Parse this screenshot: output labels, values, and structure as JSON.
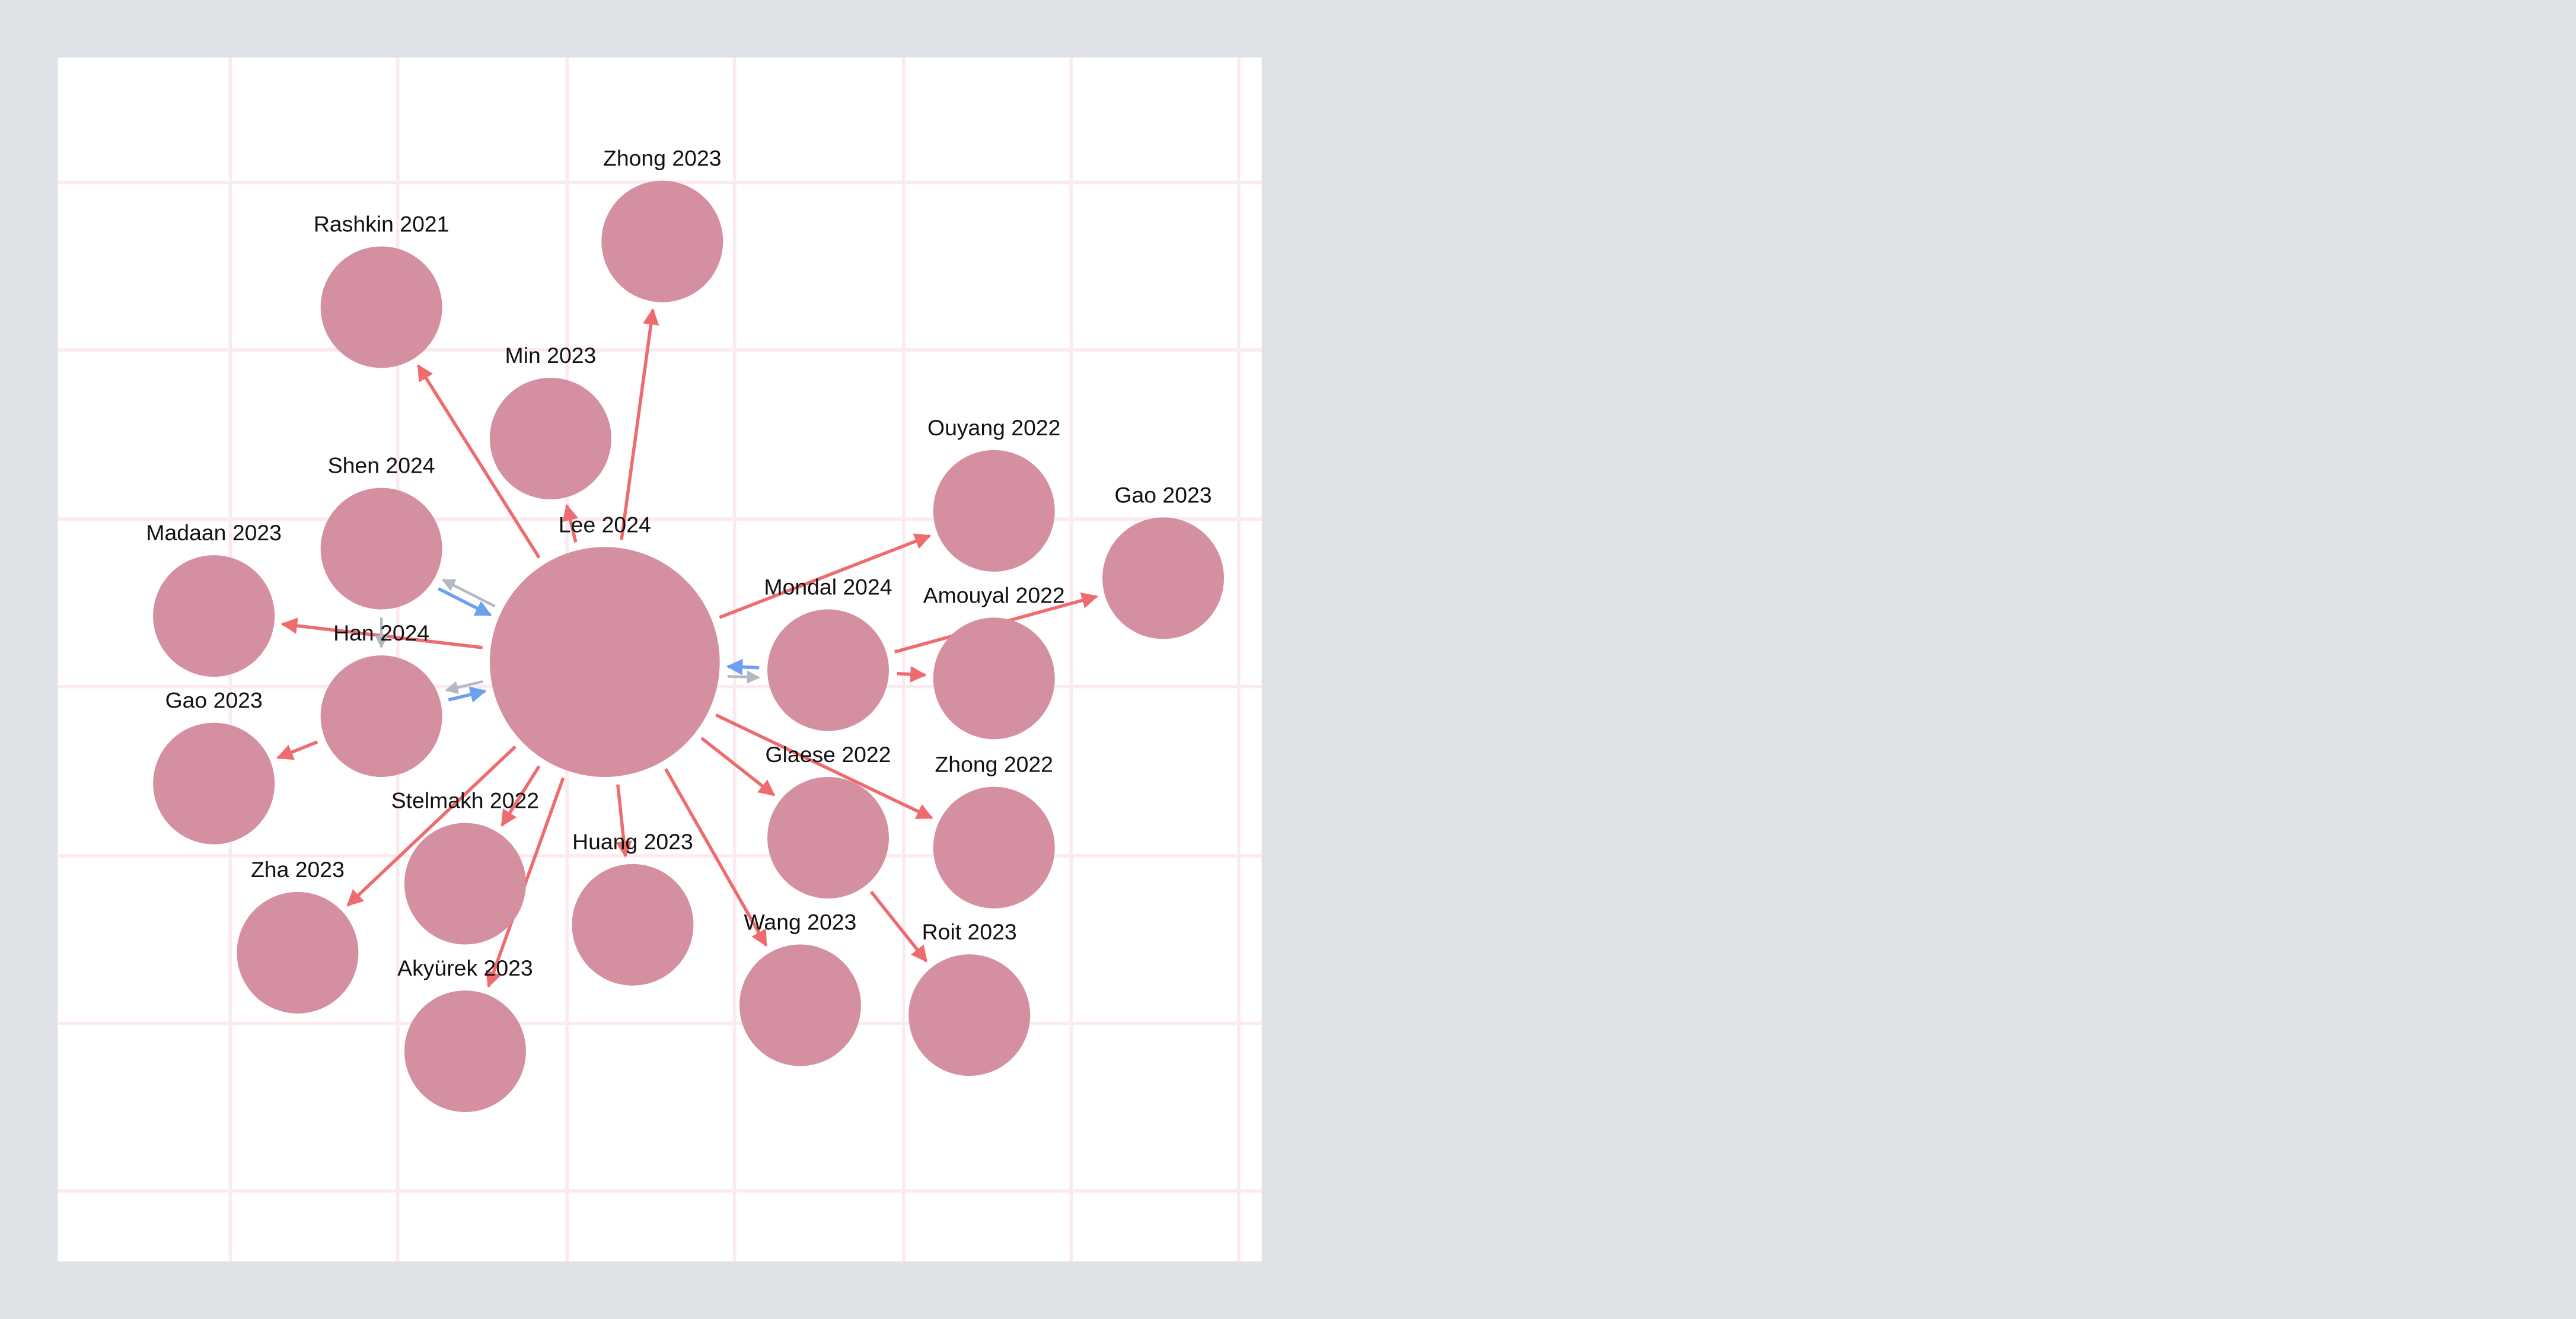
{
  "graph": {
    "colors": {
      "background": "#dfe3e8",
      "panel": "#ffffff",
      "grid": "#fbeaf0",
      "node": "#d48fa0",
      "edge_red": "#ee6b6e",
      "edge_blue": "#6ea0f0",
      "edge_gray": "#b4b8c2"
    },
    "nodes": [
      {
        "id": "lee2024",
        "label": "Lee 2024"
      },
      {
        "id": "zhong2023",
        "label": "Zhong 2023"
      },
      {
        "id": "rashkin2021",
        "label": "Rashkin 2021"
      },
      {
        "id": "min2023",
        "label": "Min 2023"
      },
      {
        "id": "shen2024",
        "label": "Shen 2024"
      },
      {
        "id": "madaan2023",
        "label": "Madaan 2023"
      },
      {
        "id": "han2024",
        "label": "Han 2024"
      },
      {
        "id": "gao2023a",
        "label": "Gao 2023"
      },
      {
        "id": "stelmakh2022",
        "label": "Stelmakh 2022"
      },
      {
        "id": "zha2023",
        "label": "Zha 2023"
      },
      {
        "id": "akyurek2023",
        "label": "Akyürek 2023"
      },
      {
        "id": "huang2023",
        "label": "Huang 2023"
      },
      {
        "id": "wang2023",
        "label": "Wang 2023"
      },
      {
        "id": "roit2023",
        "label": "Roit 2023"
      },
      {
        "id": "glaese2022",
        "label": "Glaese 2022"
      },
      {
        "id": "zhong2022",
        "label": "Zhong 2022"
      },
      {
        "id": "mondal2024",
        "label": "Mondal 2024"
      },
      {
        "id": "amouyal2022",
        "label": "Amouyal 2022"
      },
      {
        "id": "ouyang2022",
        "label": "Ouyang 2022"
      },
      {
        "id": "gao2023b",
        "label": "Gao 2023"
      }
    ],
    "edges": [
      {
        "from": "lee2024",
        "to": "zhong2023",
        "color": "edge_red"
      },
      {
        "from": "lee2024",
        "to": "rashkin2021",
        "color": "edge_red"
      },
      {
        "from": "lee2024",
        "to": "min2023",
        "color": "edge_red"
      },
      {
        "from": "lee2024",
        "to": "madaan2023",
        "color": "edge_red"
      },
      {
        "from": "lee2024",
        "to": "shen2024",
        "color": "edge_gray"
      },
      {
        "from": "shen2024",
        "to": "lee2024",
        "color": "edge_blue"
      },
      {
        "from": "shen2024",
        "to": "han2024",
        "color": "edge_gray"
      },
      {
        "from": "han2024",
        "to": "lee2024",
        "color": "edge_blue"
      },
      {
        "from": "lee2024",
        "to": "han2024",
        "color": "edge_gray"
      },
      {
        "from": "han2024",
        "to": "gao2023a",
        "color": "edge_red"
      },
      {
        "from": "lee2024",
        "to": "zha2023",
        "color": "edge_red"
      },
      {
        "from": "lee2024",
        "to": "stelmakh2022",
        "color": "edge_red"
      },
      {
        "from": "lee2024",
        "to": "akyurek2023",
        "color": "edge_red"
      },
      {
        "from": "lee2024",
        "to": "huang2023",
        "color": "edge_red"
      },
      {
        "from": "lee2024",
        "to": "wang2023",
        "color": "edge_red"
      },
      {
        "from": "lee2024",
        "to": "glaese2022",
        "color": "edge_red"
      },
      {
        "from": "lee2024",
        "to": "zhong2022",
        "color": "edge_red"
      },
      {
        "from": "lee2024",
        "to": "ouyang2022",
        "color": "edge_red"
      },
      {
        "from": "mondal2024",
        "to": "lee2024",
        "color": "edge_blue"
      },
      {
        "from": "lee2024",
        "to": "mondal2024",
        "color": "edge_gray"
      },
      {
        "from": "mondal2024",
        "to": "gao2023b",
        "color": "edge_red"
      },
      {
        "from": "mondal2024",
        "to": "amouyal2022",
        "color": "edge_red"
      },
      {
        "from": "glaese2022",
        "to": "roit2023",
        "color": "edge_red"
      }
    ]
  }
}
